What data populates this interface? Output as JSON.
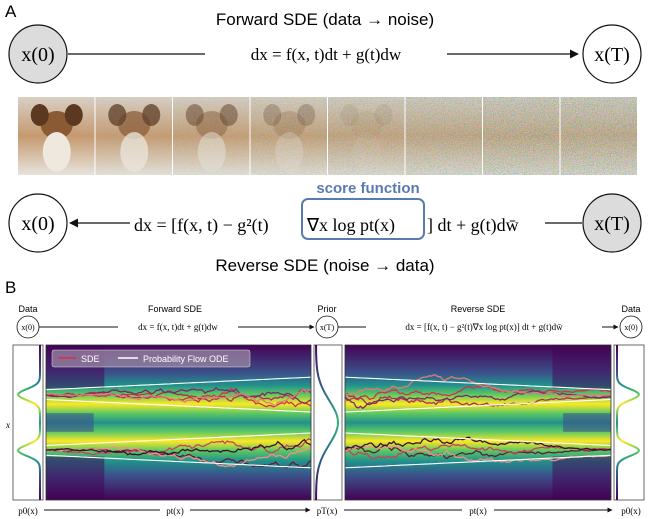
{
  "panel_a": {
    "label": "A",
    "forward_title": "Forward SDE (data → noise)",
    "forward_equation": "dx = f(x, t)dt + g(t)dw",
    "start_node": "x(0)",
    "end_node": "x(T)",
    "score_label": "score function",
    "reverse_equation_pre": "dx = [f(x, t) − g²(t)",
    "reverse_equation_score": "∇x log pt(x)",
    "reverse_equation_post": "] dt + g(t)dw̄",
    "reverse_title": "Reverse SDE (noise → data)",
    "strip_frames": 8,
    "accent_color": "#5b7bb0"
  },
  "panel_b": {
    "label": "B",
    "data_label": "Data",
    "prior_label": "Prior",
    "data_label_right": "Data",
    "forward_title": "Forward SDE",
    "reverse_title": "Reverse SDE",
    "forward_equation": "dx = f(x, t)dt + g(t)dw",
    "reverse_equation": "dx = [f(x, t) − g²(t)∇x log pt(x)] dt + g(t)dw̄",
    "node_x0": "x(0)",
    "node_xT": "x(T)",
    "node_x0_right": "x(0)",
    "y_axis_label": "x",
    "legend": {
      "sde": "SDE",
      "ode": "Probability Flow ODE"
    },
    "bottom_p0": "p0(x)",
    "bottom_pt": "pt(x)",
    "bottom_pT": "pT(x)",
    "bottom_pt2": "pt(x)",
    "bottom_p0_right": "p0(x)"
  },
  "colors": {
    "sde_line": "#d6304a",
    "ode_line": "#ffffff",
    "node_fill": "#dcdcdc",
    "heat_low": "#440154",
    "heat_high": "#fde725"
  }
}
